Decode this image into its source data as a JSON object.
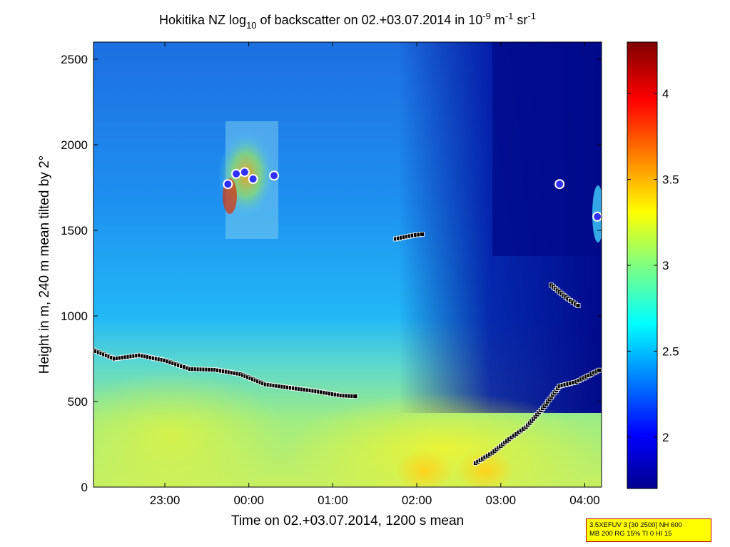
{
  "chart_data": {
    "type": "heatmap",
    "title": {
      "prefix": "Hokitika NZ log",
      "sub": "10",
      "middle": " of backscatter on 02.+03.07.2014 in 10",
      "sup1": "-9",
      "unit1": " m",
      "sup2": "-1",
      "unit2": " sr",
      "sup3": "-1"
    },
    "xlabel": "Time on 02.+03.07.2014, 1200 s mean",
    "ylabel": "Height in m, 240 m mean tilted by 2°",
    "x_ticks": [
      "23:00",
      "00:00",
      "01:00",
      "02:00",
      "03:00",
      "04:00"
    ],
    "x_tick_hours": [
      23,
      24,
      25,
      26,
      27,
      28
    ],
    "xlim_hours": [
      22.15,
      28.2
    ],
    "y_ticks": [
      0,
      500,
      1000,
      1500,
      2000,
      2500
    ],
    "ylim": [
      0,
      2600
    ],
    "colorbar": {
      "ticks": [
        2,
        2.5,
        3,
        3.5,
        4
      ],
      "tick_labels": [
        "2",
        "2.5",
        "3",
        "3.5",
        "4"
      ],
      "range": [
        1.7,
        4.3
      ],
      "colormap": "jet"
    },
    "layers": [
      {
        "name": "layer-1",
        "marker_color": "#000000",
        "points": [
          [
            22.15,
            800
          ],
          [
            22.4,
            750
          ],
          [
            22.7,
            770
          ],
          [
            23.0,
            740
          ],
          [
            23.3,
            690
          ],
          [
            23.6,
            685
          ],
          [
            23.9,
            660
          ],
          [
            24.2,
            600
          ],
          [
            24.5,
            580
          ],
          [
            24.8,
            560
          ],
          [
            25.1,
            535
          ],
          [
            25.3,
            530
          ]
        ]
      },
      {
        "name": "layer-2",
        "marker_color": "#000000",
        "points": [
          [
            26.7,
            140
          ],
          [
            26.9,
            200
          ],
          [
            27.1,
            280
          ],
          [
            27.3,
            350
          ],
          [
            27.5,
            460
          ],
          [
            27.7,
            590
          ],
          [
            27.9,
            615
          ],
          [
            28.2,
            690
          ]
        ]
      },
      {
        "name": "layer-3",
        "marker_color": "#000000",
        "points": [
          [
            25.75,
            1450
          ],
          [
            25.95,
            1470
          ],
          [
            26.1,
            1480
          ]
        ]
      },
      {
        "name": "layer-4",
        "marker_color": "#000000",
        "points": [
          [
            27.6,
            1180
          ],
          [
            27.8,
            1100
          ],
          [
            27.95,
            1050
          ]
        ]
      }
    ],
    "high_points": [
      [
        23.75,
        1770
      ],
      [
        23.85,
        1830
      ],
      [
        23.95,
        1840
      ],
      [
        24.05,
        1800
      ],
      [
        24.3,
        1820
      ],
      [
        27.7,
        1770
      ],
      [
        28.15,
        1580
      ]
    ]
  },
  "info_box": {
    "line1": "3.5XEFUV 3 [30 2500] NH 600",
    "line2": "MB 200 RG 15% TI 0 HI 15"
  }
}
